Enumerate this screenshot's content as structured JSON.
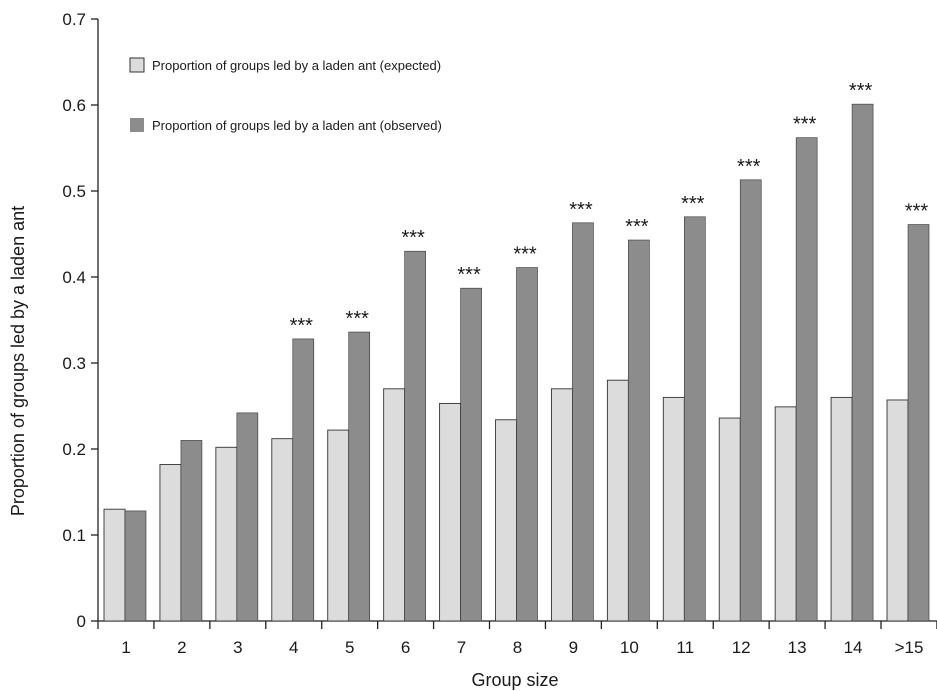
{
  "chart_data": {
    "type": "bar",
    "xlabel": "Group size",
    "ylabel": "Proportion of groups led by a laden ant",
    "ylim": [
      0,
      0.7
    ],
    "yticks": [
      "0",
      "0.1",
      "0.2",
      "0.3",
      "0.4",
      "0.5",
      "0.6",
      "0.7"
    ],
    "categories": [
      "1",
      "2",
      "3",
      "4",
      "5",
      "6",
      "7",
      "8",
      "9",
      "10",
      "11",
      "12",
      "13",
      "14",
      ">15"
    ],
    "series": [
      {
        "name": "Proportion of groups led by a laden ant (expected)",
        "color": "#dcdcdc",
        "values": [
          0.13,
          0.182,
          0.202,
          0.212,
          0.222,
          0.27,
          0.253,
          0.234,
          0.27,
          0.28,
          0.26,
          0.236,
          0.249,
          0.26,
          0.257
        ]
      },
      {
        "name": "Proportion of groups led by a laden ant (observed)",
        "color": "#8c8c8c",
        "values": [
          0.128,
          0.21,
          0.242,
          0.328,
          0.336,
          0.43,
          0.387,
          0.411,
          0.463,
          0.443,
          0.47,
          0.513,
          0.562,
          0.601,
          0.461
        ]
      }
    ],
    "significance": [
      "",
      "",
      "",
      "***",
      "***",
      "***",
      "***",
      "***",
      "***",
      "***",
      "***",
      "***",
      "***",
      "***",
      "***"
    ],
    "legend_position": "top-left",
    "grid": false
  }
}
